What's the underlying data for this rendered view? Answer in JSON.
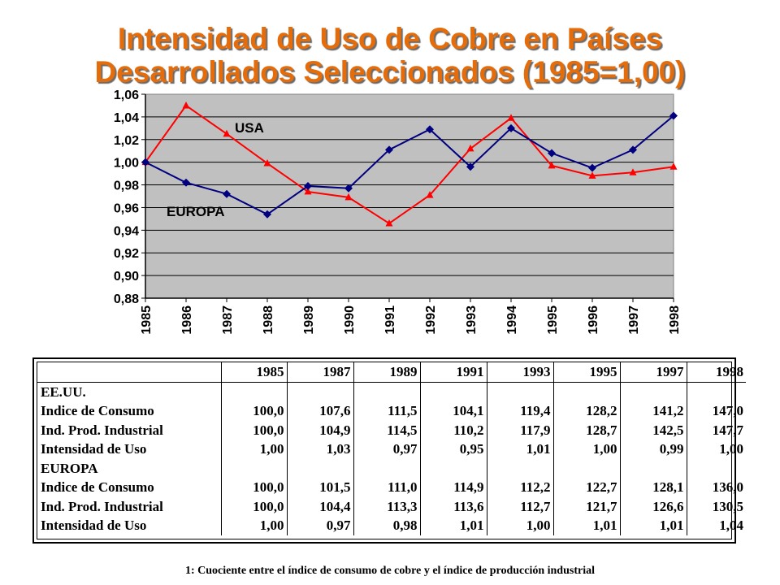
{
  "title_line1": "Intensidad de Uso de Cobre en Países",
  "title_line2": "Desarrollados Seleccionados (1985=1,00)",
  "chart_data": {
    "type": "line",
    "x": [
      "1985",
      "1986",
      "1987",
      "1988",
      "1989",
      "1990",
      "1991",
      "1992",
      "1993",
      "1994",
      "1995",
      "1996",
      "1997",
      "1998"
    ],
    "ylim": [
      0.88,
      1.06
    ],
    "yticks": [
      "1,06",
      "1,04",
      "1,02",
      "1,00",
      "0,98",
      "0,96",
      "0,94",
      "0,92",
      "0,90",
      "0,88"
    ],
    "grid": true,
    "plot_background": "#c0c0c0",
    "series": [
      {
        "name": "USA",
        "color": "#ff0000",
        "marker": "triangle",
        "values": [
          1.0,
          1.05,
          1.025,
          0.999,
          0.974,
          0.969,
          0.946,
          0.971,
          1.012,
          1.039,
          0.997,
          0.988,
          0.991,
          0.996
        ]
      },
      {
        "name": "EUROPA",
        "color": "#000080",
        "marker": "diamond",
        "values": [
          1.0,
          0.982,
          0.972,
          0.954,
          0.979,
          0.977,
          1.011,
          1.029,
          0.996,
          1.03,
          1.008,
          0.995,
          1.011,
          1.041
        ]
      }
    ]
  },
  "table": {
    "headers": [
      "",
      "1985",
      "1987",
      "1989",
      "1991",
      "1993",
      "1995",
      "1997",
      "1998"
    ],
    "rows": [
      [
        "EE.UU.",
        "",
        "",
        "",
        "",
        "",
        "",
        "",
        ""
      ],
      [
        "Indice de Consumo",
        "100,0",
        "107,6",
        "111,5",
        "104,1",
        "119,4",
        "128,2",
        "141,2",
        "147,0"
      ],
      [
        "Ind. Prod. Industrial",
        "100,0",
        "104,9",
        "114,5",
        "110,2",
        "117,9",
        "128,7",
        "142,5",
        "147,7"
      ],
      [
        "Intensidad de Uso",
        "1,00",
        "1,03",
        "0,97",
        "0,95",
        "1,01",
        "1,00",
        "0,99",
        "1,00"
      ],
      [
        "EUROPA",
        "",
        "",
        "",
        "",
        "",
        "",
        "",
        ""
      ],
      [
        "Indice de Consumo",
        "100,0",
        "101,5",
        "111,0",
        "114,9",
        "112,2",
        "122,7",
        "128,1",
        "136,0"
      ],
      [
        "Ind. Prod. Industrial",
        "100,0",
        "104,4",
        "113,3",
        "113,6",
        "112,7",
        "121,7",
        "126,6",
        "130,5"
      ],
      [
        "Intensidad de Uso",
        "1,00",
        "0,97",
        "0,98",
        "1,01",
        "1,00",
        "1,01",
        "1,01",
        "1,04"
      ]
    ]
  },
  "footnote": "1: Cuociente entre el índice de consumo de cobre y el índice de producción industrial"
}
